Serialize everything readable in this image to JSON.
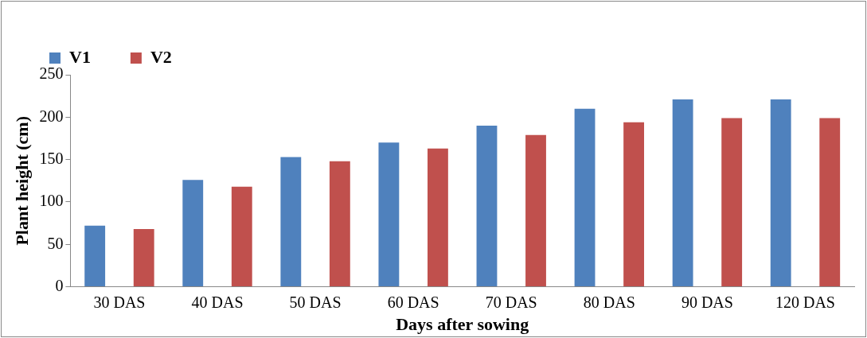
{
  "chart_data": {
    "type": "bar",
    "xlabel": "Days after sowing",
    "ylabel": "Plant height (cm)",
    "categories": [
      "30 DAS",
      "40 DAS",
      "50 DAS",
      "60 DAS",
      "70 DAS",
      "80 DAS",
      "90 DAS",
      "120 DAS"
    ],
    "series": [
      {
        "name": "V1",
        "color": "#4f81bd",
        "values": [
          72,
          126,
          153,
          170,
          190,
          210,
          221,
          221
        ]
      },
      {
        "name": "V2",
        "color": "#c0504d",
        "values": [
          68,
          118,
          148,
          163,
          179,
          194,
          199,
          199
        ]
      }
    ],
    "ylim": [
      0,
      250
    ],
    "yticks": [
      0,
      50,
      100,
      150,
      200,
      250
    ],
    "grid": false,
    "legend": "top left"
  }
}
